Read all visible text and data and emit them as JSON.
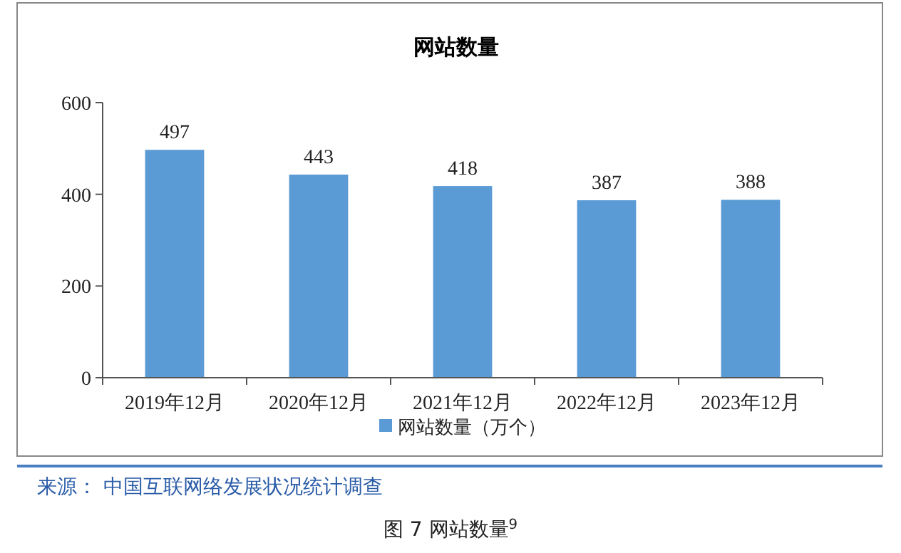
{
  "chart_data": {
    "type": "bar",
    "title": "网站数量",
    "categories": [
      "2019年12月",
      "2020年12月",
      "2021年12月",
      "2022年12月",
      "2023年12月"
    ],
    "series": [
      {
        "name": "网站数量（万个）",
        "color": "#5b9bd5",
        "values": [
          497,
          443,
          418,
          387,
          388
        ]
      }
    ],
    "ylim": [
      0,
      600
    ],
    "yticks": [
      0,
      200,
      400,
      600
    ],
    "data_labels": true,
    "legend": "bottom",
    "grid": false,
    "annotations": [
      "来源： 中国互联网络发展状况统计调查",
      "图 7  网站数量$^{9}$"
    ]
  }
}
